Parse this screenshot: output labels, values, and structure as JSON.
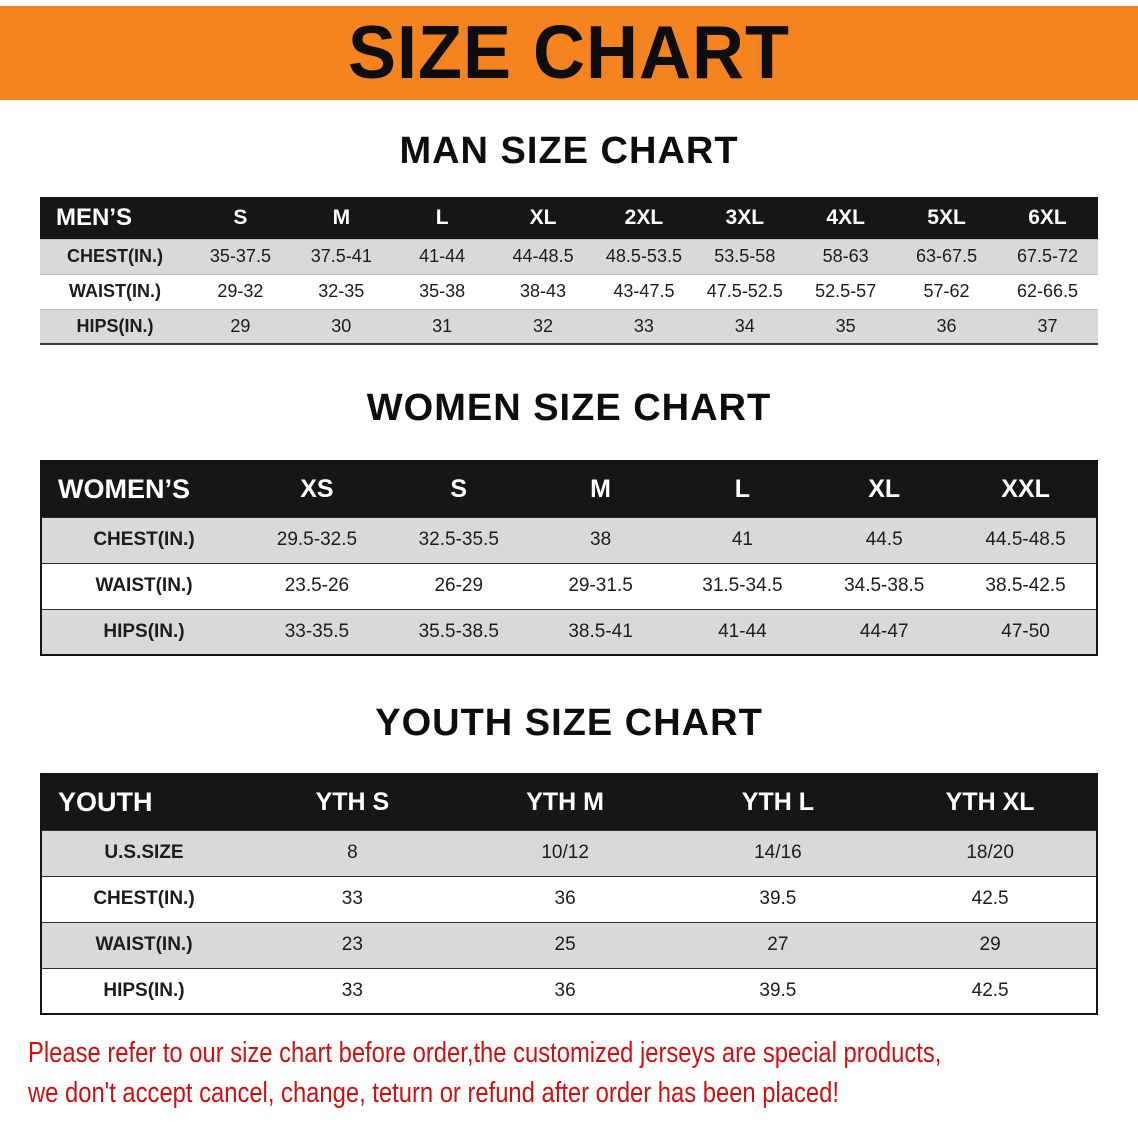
{
  "banner": {
    "title": "SIZE CHART"
  },
  "colors": {
    "banner_bg": "#f5831f",
    "table_header_bg": "#161616",
    "row_shade": "#d9d9d9",
    "footer_text": "#cc1111"
  },
  "sections": [
    {
      "id": "men",
      "heading": "MAN SIZE CHART",
      "header_label": "MEN’S",
      "columns": [
        "S",
        "M",
        "L",
        "XL",
        "2XL",
        "3XL",
        "4XL",
        "5XL",
        "6XL"
      ],
      "rows": [
        {
          "label": "CHEST(IN.)",
          "values": [
            "35-37.5",
            "37.5-41",
            "41-44",
            "44-48.5",
            "48.5-53.5",
            "53.5-58",
            "58-63",
            "63-67.5",
            "67.5-72"
          ]
        },
        {
          "label": "WAIST(IN.)",
          "values": [
            "29-32",
            "32-35",
            "35-38",
            "38-43",
            "43-47.5",
            "47.5-52.5",
            "52.5-57",
            "57-62",
            "62-66.5"
          ]
        },
        {
          "label": "HIPS(IN.)",
          "values": [
            "29",
            "30",
            "31",
            "32",
            "33",
            "34",
            "35",
            "36",
            "37"
          ]
        }
      ]
    },
    {
      "id": "women",
      "heading": "WOMEN SIZE CHART",
      "header_label": "WOMEN’S",
      "columns": [
        "XS",
        "S",
        "M",
        "L",
        "XL",
        "XXL"
      ],
      "rows": [
        {
          "label": "CHEST(IN.)",
          "values": [
            "29.5-32.5",
            "32.5-35.5",
            "38",
            "41",
            "44.5",
            "44.5-48.5"
          ]
        },
        {
          "label": "WAIST(IN.)",
          "values": [
            "23.5-26",
            "26-29",
            "29-31.5",
            "31.5-34.5",
            "34.5-38.5",
            "38.5-42.5"
          ]
        },
        {
          "label": "HIPS(IN.)",
          "values": [
            "33-35.5",
            "35.5-38.5",
            "38.5-41",
            "41-44",
            "44-47",
            "47-50"
          ]
        }
      ]
    },
    {
      "id": "youth",
      "heading": "YOUTH SIZE CHART",
      "header_label": "YOUTH",
      "columns": [
        "YTH S",
        "YTH M",
        "YTH L",
        "YTH XL"
      ],
      "rows": [
        {
          "label": "U.S.SIZE",
          "values": [
            "8",
            "10/12",
            "14/16",
            "18/20"
          ]
        },
        {
          "label": "CHEST(IN.)",
          "values": [
            "33",
            "36",
            "39.5",
            "42.5"
          ]
        },
        {
          "label": "WAIST(IN.)",
          "values": [
            "23",
            "25",
            "27",
            "29"
          ]
        },
        {
          "label": "HIPS(IN.)",
          "values": [
            "33",
            "36",
            "39.5",
            "42.5"
          ]
        }
      ]
    }
  ],
  "footer": {
    "line1": "Please refer to our size chart before order,the customized jerseys are special products,",
    "line2": "we don't accept cancel, change, teturn or refund after order has been placed!"
  }
}
